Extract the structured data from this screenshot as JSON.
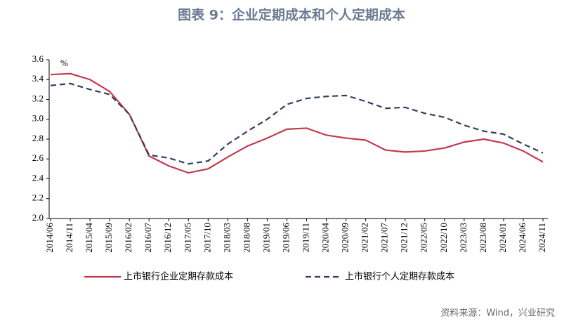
{
  "chart_data": {
    "type": "line",
    "title": "图表 9：企业定期成本和个人定期成本",
    "y_unit": "%",
    "source": "资料来源：Wind，兴业研究",
    "categories": [
      "2014/06",
      "2014/11",
      "2015/04",
      "2015/09",
      "2016/02",
      "2016/07",
      "2016/12",
      "2017/05",
      "2017/10",
      "2018/03",
      "2018/08",
      "2019/01",
      "2019/06",
      "2019/11",
      "2020/04",
      "2020/09",
      "2021/02",
      "2021/07",
      "2021/12",
      "2022/05",
      "2022/10",
      "2023/03",
      "2023/08",
      "2024/01",
      "2024/06",
      "2024/11"
    ],
    "series": [
      {
        "name": "上市银行企业定期存款成本",
        "color": "#c23a4e",
        "style": "solid",
        "values": [
          3.45,
          3.46,
          3.4,
          3.28,
          3.05,
          2.63,
          2.53,
          2.46,
          2.5,
          2.62,
          2.73,
          2.81,
          2.9,
          2.91,
          2.84,
          2.81,
          2.79,
          2.69,
          2.67,
          2.68,
          2.71,
          2.77,
          2.8,
          2.76,
          2.68,
          2.57
        ]
      },
      {
        "name": "上市银行个人定期存款成本",
        "color": "#2f3f5e",
        "style": "dashed",
        "values": [
          3.34,
          3.36,
          3.3,
          3.25,
          3.05,
          2.64,
          2.61,
          2.55,
          2.58,
          2.75,
          2.88,
          3.0,
          3.15,
          3.21,
          3.23,
          3.24,
          3.18,
          3.11,
          3.12,
          3.06,
          3.02,
          2.94,
          2.88,
          2.85,
          2.75,
          2.66
        ]
      }
    ],
    "ylim": [
      2.0,
      3.6
    ],
    "yticks": [
      {
        "value": 2.0,
        "label": "2.0"
      },
      {
        "value": 2.2,
        "label": "2.2"
      },
      {
        "value": 2.4,
        "label": "2.4"
      },
      {
        "value": 2.6,
        "label": "2.6"
      },
      {
        "value": 2.8,
        "label": "2.8"
      },
      {
        "value": 3.0,
        "label": "3.0"
      },
      {
        "value": 3.2,
        "label": "3.2"
      },
      {
        "value": 3.4,
        "label": "3.4"
      },
      {
        "value": 3.6,
        "label": "3.6"
      }
    ],
    "grid": false,
    "legend": "bottom"
  }
}
